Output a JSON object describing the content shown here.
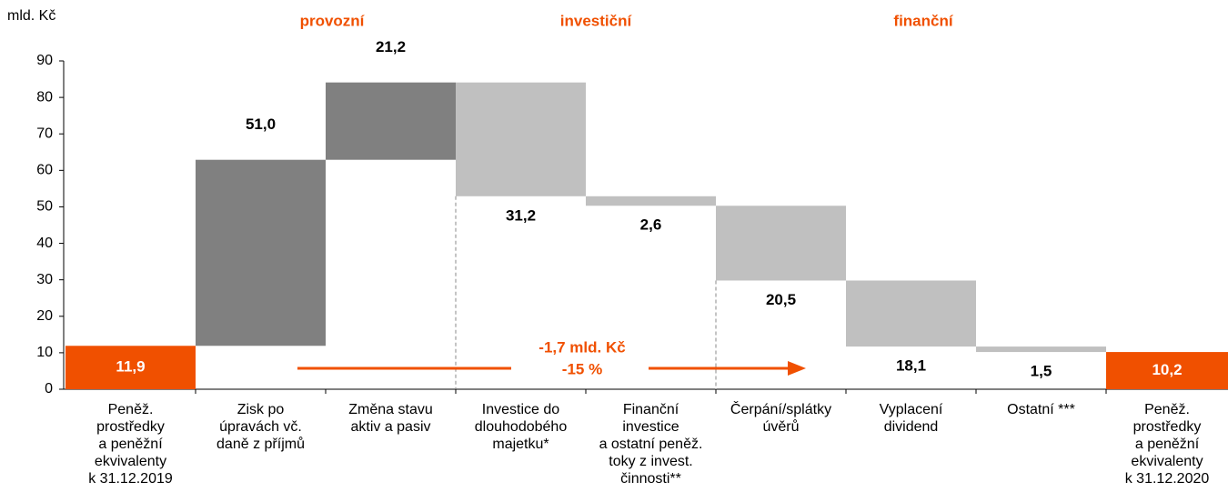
{
  "chart_data": {
    "type": "waterfall",
    "y_label": "mld. Kč",
    "groups": [
      "provozní",
      "investiční",
      "finanční"
    ],
    "annotations": [
      "-1,7 mld. Kč",
      "-15 %"
    ],
    "categories": [
      [
        "Peněž.",
        "prostředky",
        "a peněžní",
        "ekvivalenty",
        "k 31.12.2019"
      ],
      [
        "Zisk po",
        "úpravách vč.",
        "daně z příjmů"
      ],
      [
        "Změna stavu",
        "aktiv a pasiv"
      ],
      [
        "Investice do",
        "dlouhodobého",
        "majetku*"
      ],
      [
        "Finanční",
        "investice",
        "a ostatní peněž.",
        "toky z invest.",
        "činnosti**"
      ],
      [
        "Čerpání/splátky",
        "úvěrů"
      ],
      [
        "Vyplacení",
        "dividend"
      ],
      [
        "Ostatní ***"
      ],
      [
        "Peněž.",
        "prostředky",
        "a peněžní",
        "ekvivalenty",
        "k 31.12.2020"
      ]
    ],
    "values": [
      11.9,
      51.0,
      21.2,
      -31.2,
      -2.6,
      -20.5,
      -18.1,
      -1.5,
      10.2
    ],
    "value_labels": [
      "11,9",
      "51,0",
      "21,2",
      "31,2",
      "2,6",
      "20,5",
      "18,1",
      "1,5",
      "10,2"
    ],
    "colors": [
      "#f05000",
      "#808080",
      "#808080",
      "#c0c0c0",
      "#c0c0c0",
      "#c0c0c0",
      "#c0c0c0",
      "#c0c0c0",
      "#f05000"
    ],
    "ylim": [
      0,
      90
    ],
    "yticks": [
      0,
      10,
      20,
      30,
      40,
      50,
      60,
      70,
      80,
      90
    ]
  }
}
